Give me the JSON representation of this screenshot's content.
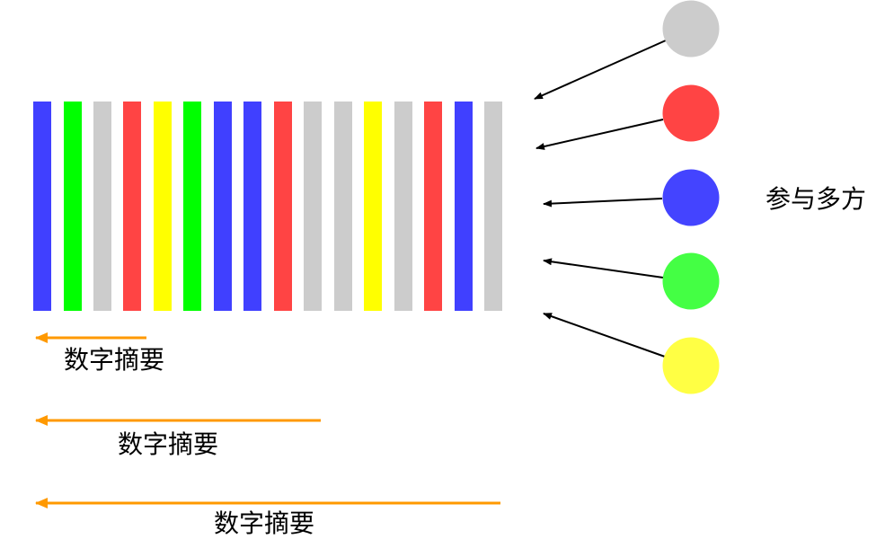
{
  "bars": [
    "blue",
    "green",
    "gray",
    "red",
    "yellow",
    "green",
    "blue",
    "blue",
    "red",
    "gray",
    "gray",
    "yellow",
    "gray",
    "red",
    "blue",
    "gray"
  ],
  "palette": {
    "blue": "#4040FF",
    "green": "#00FF00",
    "gray": "#CCCCCC",
    "red": "#FF4444",
    "yellow": "#FFFF00"
  },
  "participants": {
    "label": "参与多方",
    "circles": [
      {
        "color": "#CCCCCC"
      },
      {
        "color": "#FF4444"
      },
      {
        "color": "#4444FF"
      },
      {
        "color": "#44FF44"
      },
      {
        "color": "#FFFF44"
      }
    ]
  },
  "digests": [
    {
      "label": "数字摘要"
    },
    {
      "label": "数字摘要"
    },
    {
      "label": "数字摘要"
    }
  ],
  "arrow_color": "#FF9900"
}
